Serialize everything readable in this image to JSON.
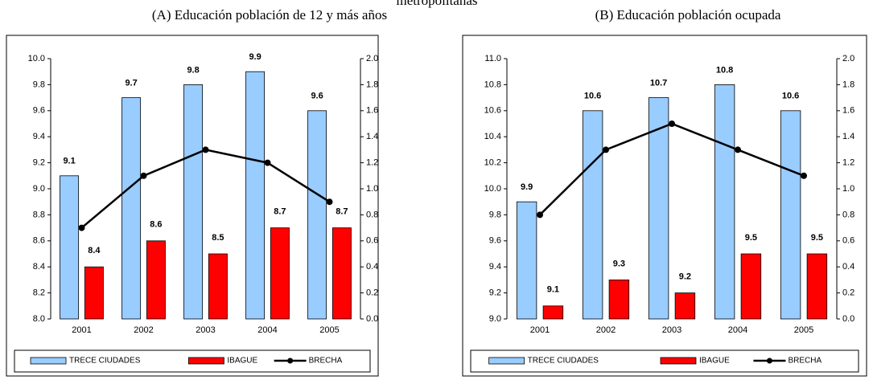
{
  "heading": "metropolitanas",
  "chart_data": [
    {
      "type": "bar",
      "title": "(A) Educación población de 12 y más años",
      "categories": [
        "2001",
        "2002",
        "2003",
        "2004",
        "2005"
      ],
      "series": [
        {
          "name": "TRECE CIUDADES",
          "type": "bar",
          "color": "#99ccff",
          "label_color": "#0000ff",
          "values": [
            9.1,
            9.7,
            9.8,
            9.9,
            9.6
          ]
        },
        {
          "name": "IBAGUE",
          "type": "bar",
          "color": "#ff0000",
          "label_color": "#ff0000",
          "values": [
            8.4,
            8.6,
            8.5,
            8.7,
            8.7
          ]
        },
        {
          "name": "BRECHA",
          "type": "line",
          "color": "#000000",
          "axis": "y2",
          "values": [
            0.7,
            1.1,
            1.3,
            1.2,
            0.9
          ]
        }
      ],
      "ylim": [
        8,
        10
      ],
      "yticks": [
        {
          "value": 8,
          "label": "8.0"
        },
        8.2,
        8.4,
        8.6,
        8.8,
        {
          "value": 9,
          "label": "9.0"
        },
        9.2,
        9.4,
        9.6,
        9.8,
        {
          "value": 10,
          "label": "10.0"
        }
      ],
      "y2lim": [
        0,
        2
      ],
      "y2ticks": [
        {
          "value": 0,
          "label": "0.0"
        },
        0.2,
        0.4,
        0.6,
        0.8,
        {
          "value": 1,
          "label": "1.0"
        },
        1.2,
        1.4,
        1.6,
        1.8,
        {
          "value": 2,
          "label": "2.0"
        }
      ],
      "y2tick_color": "#ff0000",
      "grid": false,
      "legend": "bottom"
    },
    {
      "type": "bar",
      "title": "(B) Educación población ocupada",
      "categories": [
        "2001",
        "2002",
        "2003",
        "2004",
        "2005"
      ],
      "series": [
        {
          "name": "TRECE CIUDADES",
          "type": "bar",
          "color": "#99ccff",
          "label_color": "#0000ff",
          "values": [
            9.9,
            10.6,
            10.7,
            10.8,
            10.6
          ]
        },
        {
          "name": "IBAGUE",
          "type": "bar",
          "color": "#ff0000",
          "label_color": "#ff0000",
          "values": [
            9.1,
            9.3,
            9.2,
            9.5,
            9.5
          ]
        },
        {
          "name": "BRECHA",
          "type": "line",
          "color": "#000000",
          "axis": "y2",
          "values": [
            0.8,
            1.3,
            1.5,
            1.3,
            1.1
          ]
        }
      ],
      "ylim": [
        9,
        11
      ],
      "yticks": [
        {
          "value": 9,
          "label": "9.0"
        },
        9.2,
        9.4,
        9.6,
        9.8,
        {
          "value": 10,
          "label": "10.0"
        },
        10.2,
        10.4,
        10.6,
        10.8,
        {
          "value": 11,
          "label": "11.0"
        }
      ],
      "y2lim": [
        0,
        2
      ],
      "y2ticks": [
        {
          "value": 0,
          "label": "0.0"
        },
        0.2,
        0.4,
        0.6,
        0.8,
        {
          "value": 1,
          "label": "1.0"
        },
        1.2,
        1.4,
        1.6,
        1.8,
        {
          "value": 2,
          "label": "2.0"
        }
      ],
      "y2tick_color": "#ff0000",
      "grid": false,
      "legend": "bottom"
    }
  ]
}
